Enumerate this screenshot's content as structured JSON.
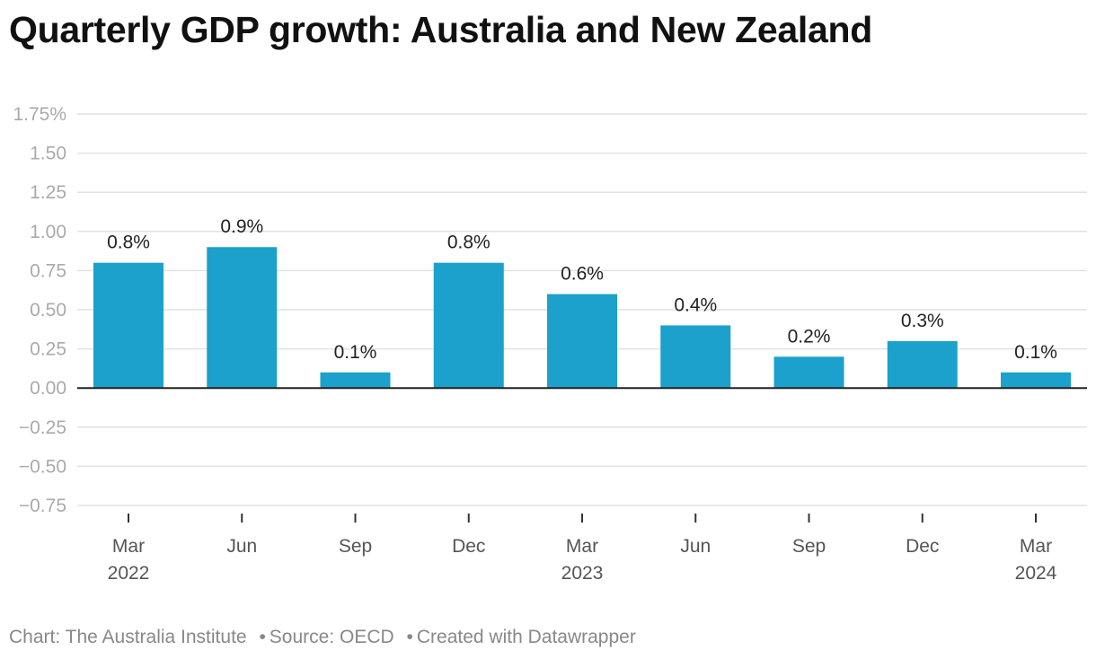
{
  "title": "Quarterly GDP growth: Australia and New Zealand",
  "footer": {
    "chart_credit": "Chart: The Australia Institute",
    "source": "Source: OECD",
    "created_with": "Created with Datawrapper",
    "separator": "•"
  },
  "colors": {
    "bar": "#1ba1cc",
    "grid": "#e2e2e2",
    "baseline": "#222222",
    "tick_text": "#aaaaaa",
    "axis_text": "#555555",
    "label_text": "#222222",
    "title": "#111111"
  },
  "chart_data": {
    "type": "bar",
    "categories": [
      "Mar 2022",
      "Jun 2022",
      "Sep 2022",
      "Dec 2022",
      "Mar 2023",
      "Jun 2023",
      "Sep 2023",
      "Dec 2023",
      "Mar 2024"
    ],
    "x_tick_labels": [
      [
        "Mar",
        "2022"
      ],
      [
        "Jun",
        ""
      ],
      [
        "Sep",
        ""
      ],
      [
        "Dec",
        ""
      ],
      [
        "Mar",
        "2023"
      ],
      [
        "Jun",
        ""
      ],
      [
        "Sep",
        ""
      ],
      [
        "Dec",
        ""
      ],
      [
        "Mar",
        "2024"
      ]
    ],
    "values": [
      0.8,
      0.9,
      0.1,
      0.8,
      0.6,
      0.4,
      0.2,
      0.3,
      0.1
    ],
    "data_labels": [
      "0.8%",
      "0.9%",
      "0.1%",
      "0.8%",
      "0.6%",
      "0.4%",
      "0.2%",
      "0.3%",
      "0.1%"
    ],
    "y_ticks": [
      1.75,
      1.5,
      1.25,
      1.0,
      0.75,
      0.5,
      0.25,
      0.0,
      -0.25,
      -0.5,
      -0.75
    ],
    "y_tick_labels": [
      "1.75%",
      "1.50",
      "1.25",
      "1.00",
      "0.75",
      "0.50",
      "0.25",
      "0.00",
      "−0.25",
      "−0.50",
      "−0.75"
    ],
    "ylim": [
      -0.75,
      1.75
    ],
    "grid": true,
    "xlabel": "",
    "ylabel": ""
  }
}
